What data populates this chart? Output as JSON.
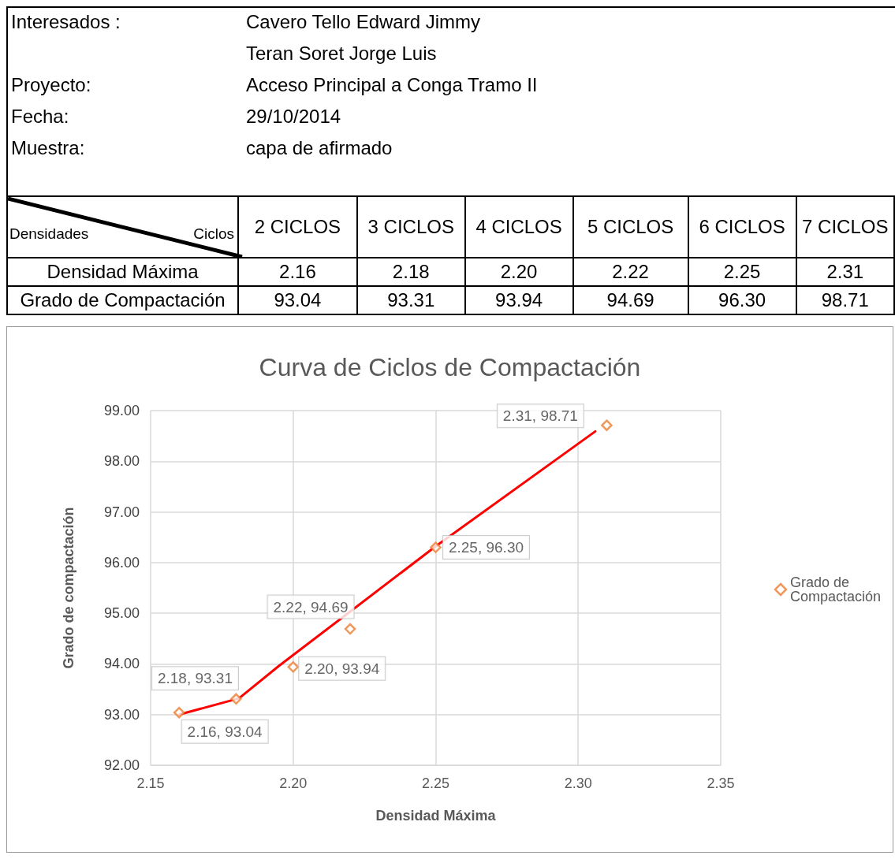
{
  "chart_data": {
    "type": "scatter",
    "title": "Curva de Ciclos de Compactación",
    "xlabel": "Densidad Máxima",
    "ylabel": "Grado de compactación",
    "annotations": [
      "Interesados :",
      "Cavero Tello Edward Jimmy",
      "Teran Soret Jorge Luis",
      "Proyecto:",
      "Acceso Principal a Conga Tramo II",
      "Fecha:",
      " 29/10/2014",
      "Muestra:",
      "capa de afirmado",
      "Densidades",
      "Ciclos",
      "2 CICLOS",
      "3 CICLOS",
      "4 CICLOS",
      "5 CICLOS",
      "6 CICLOS",
      "7 CICLOS",
      "Densidad Máxima",
      "2.16",
      "2.18",
      "2.20",
      "2.22",
      "2.25",
      "2.31",
      "Grado de Compactación",
      "93.04",
      "93.31",
      "93.94",
      "94.69",
      "96.30",
      "98.71"
    ],
    "x": [
      2.16,
      2.18,
      2.2,
      2.22,
      2.25,
      2.31
    ],
    "series": [
      {
        "name": "Grado de Compactación",
        "color": "#ed7d31",
        "marker": "diamond",
        "values": [
          93.04,
          93.31,
          93.94,
          94.69,
          96.3,
          98.71
        ],
        "value_labels": [
          "2.16, 93.04",
          "2.18, 93.31",
          "2.20, 93.94",
          "2.22, 94.69",
          "2.25, 96.30",
          "2.31, 98.71"
        ]
      },
      {
        "type": "line",
        "color": "#ff0000",
        "marker": "none",
        "line_style": "solid",
        "x": [
          2.16,
          2.181,
          2.195,
          2.25,
          2.306
        ],
        "values": [
          93.0,
          93.32,
          93.96,
          96.32,
          98.59
        ]
      }
    ],
    "xlim": [
      2.15,
      2.35
    ],
    "xticks": [
      {
        "value": 2.15,
        "label": "2.15"
      },
      {
        "value": 2.2,
        "label": "2.20"
      },
      {
        "value": 2.25,
        "label": "2.25"
      },
      {
        "value": 2.3,
        "label": "2.30"
      },
      {
        "value": 2.35,
        "label": "2.35"
      }
    ],
    "ylim": [
      92,
      99
    ],
    "yticks": [
      {
        "value": 92,
        "label": "92.00"
      },
      {
        "value": 93,
        "label": "93.00"
      },
      {
        "value": 94,
        "label": "94.00"
      },
      {
        "value": 95,
        "label": "95.00"
      },
      {
        "value": 96,
        "label": "96.00"
      },
      {
        "value": 97,
        "label": "97.00"
      },
      {
        "value": 98,
        "label": "98.00"
      },
      {
        "value": 99,
        "label": "99.00"
      }
    ],
    "grid": true,
    "legend": "right"
  }
}
